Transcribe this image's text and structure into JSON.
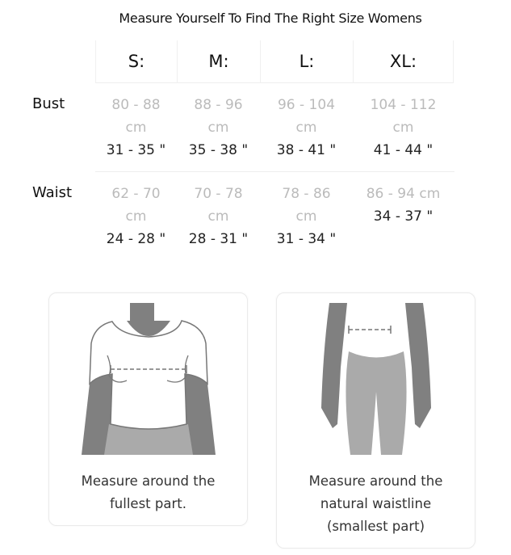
{
  "title": "Measure Yourself To Find The Right Size Womens",
  "sizes": [
    "S:",
    "M:",
    "L:",
    "XL:"
  ],
  "rows": [
    {
      "label": "Bust",
      "cells": [
        {
          "cm1": "80 - 88",
          "cm2": "cm",
          "in": "31 - 35 \""
        },
        {
          "cm1": "88 - 96",
          "cm2": "cm",
          "in": "35 - 38 \""
        },
        {
          "cm1": "96 - 104",
          "cm2": "cm",
          "in": "38 - 41 \""
        },
        {
          "cm1": "104 - 112",
          "cm2": "cm",
          "in": "41 - 44 \""
        }
      ]
    },
    {
      "label": "Waist",
      "cells": [
        {
          "cm1": "62 - 70",
          "cm2": "cm",
          "in": "24 - 28 \""
        },
        {
          "cm1": "70 - 78",
          "cm2": "cm",
          "in": "28 - 31 \""
        },
        {
          "cm1": "78 - 86",
          "cm2": "cm",
          "in": "31 - 34 \""
        },
        {
          "cm1": "86 - 94 cm",
          "cm2": "34 - 37 \"",
          "in": ""
        }
      ]
    }
  ],
  "cards": [
    {
      "illustration": "bust-measure-figure",
      "lines": [
        "Measure around the",
        "fullest part."
      ]
    },
    {
      "illustration": "waist-measure-figure",
      "lines": [
        "Measure around the",
        "natural waistline",
        "(smallest part)"
      ]
    }
  ],
  "colors": {
    "skin": "#808080",
    "pants": "#aaaaaa",
    "outline": "#777777",
    "cm_text": "#bbbbbb"
  }
}
